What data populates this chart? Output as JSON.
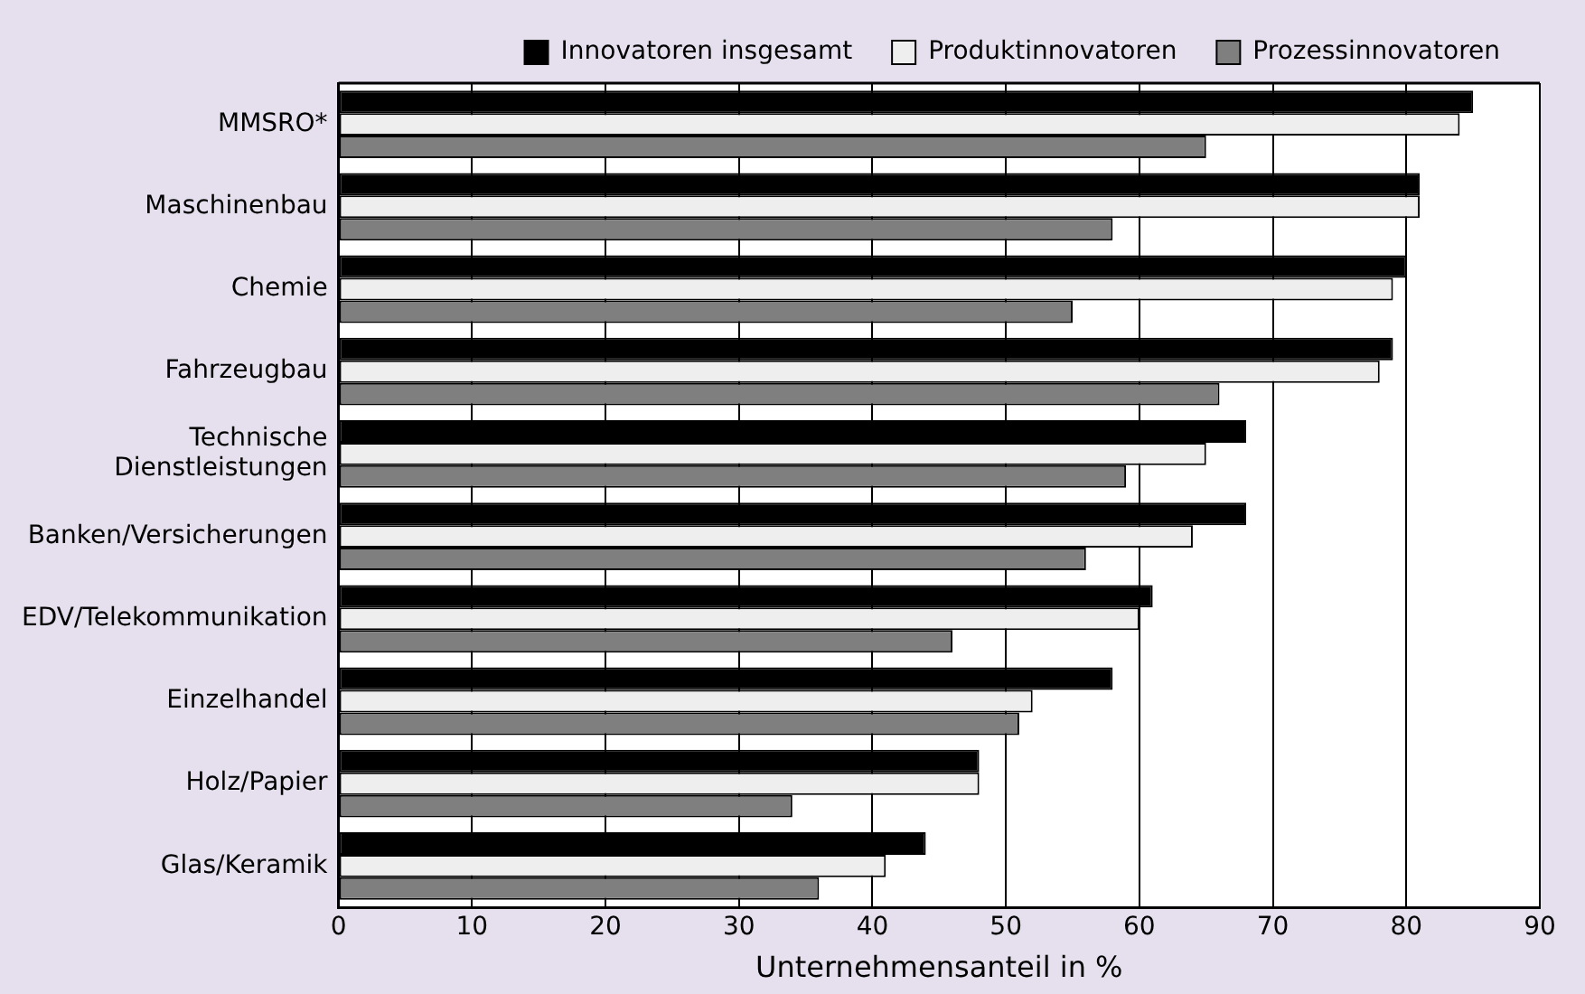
{
  "chart_data": {
    "type": "bar",
    "orientation": "horizontal",
    "xlabel": "Unternehmensanteil in %",
    "categories": [
      "MMSRO*",
      "Maschinenbau",
      "Chemie",
      "Fahrzeugbau",
      "Technische\nDienstleistungen",
      "Banken/Versicherungen",
      "EDV/Telekommunikation",
      "Einzelhandel",
      "Holz/Papier",
      "Glas/Keramik"
    ],
    "series": [
      {
        "name": "Innovatoren insgesamt",
        "color": "#000000",
        "values": [
          85,
          81,
          80,
          79,
          68,
          68,
          61,
          58,
          48,
          44
        ]
      },
      {
        "name": "Produktinnovatoren",
        "color": "#eeeeee",
        "values": [
          84,
          81,
          79,
          78,
          65,
          64,
          60,
          52,
          48,
          41
        ]
      },
      {
        "name": "Prozessinnovatoren",
        "color": "#7f7f7f",
        "values": [
          65,
          58,
          55,
          66,
          59,
          56,
          46,
          51,
          34,
          36
        ]
      }
    ],
    "xlim": [
      0,
      90
    ],
    "xticks": [
      0,
      10,
      20,
      30,
      40,
      50,
      60,
      70,
      80,
      90
    ],
    "grid": "x",
    "legend": "top right"
  }
}
